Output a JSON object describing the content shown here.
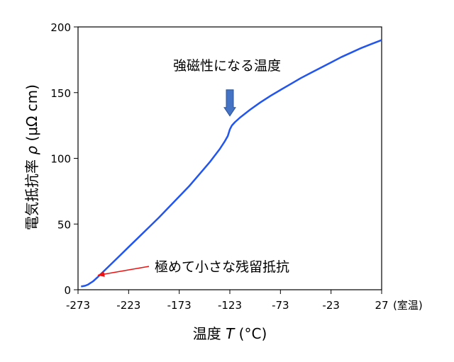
{
  "chart_data": {
    "type": "line",
    "title": "",
    "xlabel": "温度 T (°C)",
    "ylabel": "電気抵抗率 ρ (μΩ cm)",
    "xlabel_parts": {
      "prefix": "温度 ",
      "symbol": "T",
      "unit": " (°C)"
    },
    "ylabel_parts": {
      "prefix": "電気抵抗率 ",
      "symbol": "ρ",
      "unit": " (μΩ cm)"
    },
    "xlim": [
      -273,
      27
    ],
    "ylim": [
      0,
      200
    ],
    "x_ticks": [
      -273,
      -223,
      -173,
      -123,
      -73,
      -23,
      27
    ],
    "x_tick_labels": [
      "-273",
      "-223",
      "-173",
      "-123",
      "-73",
      "-23",
      "27"
    ],
    "x_tick_suffix": "(室温)",
    "y_ticks": [
      0,
      50,
      100,
      150,
      200
    ],
    "y_tick_labels": [
      "0",
      "50",
      "100",
      "150",
      "200"
    ],
    "grid": false,
    "series": [
      {
        "x": [
          -270,
          -266,
          -263,
          -258,
          -253,
          -243,
          -233,
          -223,
          -213,
          -203,
          -193,
          -183,
          -173,
          -163,
          -153,
          -143,
          -133,
          -128,
          -125,
          -123,
          -121,
          -118,
          -113,
          -103,
          -93,
          -83,
          -73,
          -63,
          -53,
          -43,
          -33,
          -23,
          -13,
          -3,
          7,
          17,
          27
        ],
        "y": [
          2.5,
          3,
          4,
          6.5,
          10,
          17.5,
          25,
          32.5,
          40,
          47.5,
          55,
          63,
          71,
          79,
          88,
          97,
          107,
          113,
          117,
          122,
          125,
          127.5,
          131,
          137,
          142.5,
          147.5,
          152,
          156.5,
          161,
          165,
          169,
          173,
          177,
          180.5,
          184,
          187,
          190
        ]
      }
    ],
    "line_color": "#2255ee",
    "annotations": [
      {
        "text": "強磁性になる温度",
        "x": -123,
        "y": 122,
        "marker": "down-arrow",
        "marker_color": "#4472c4"
      },
      {
        "text": "極めて小さな残留抵抗",
        "x": -256,
        "y": 10,
        "marker": "pointer-arrow",
        "marker_color": "#ee1111"
      }
    ]
  }
}
